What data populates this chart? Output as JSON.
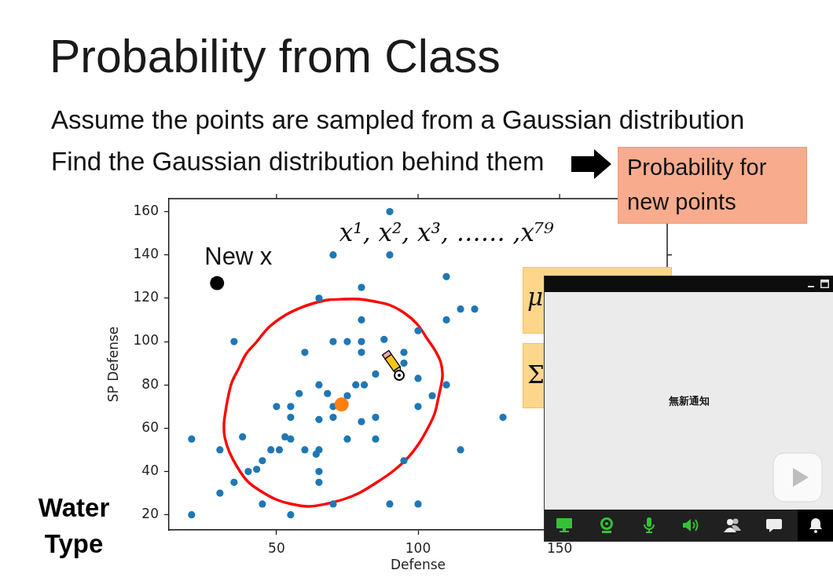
{
  "chart_data": {
    "type": "scatter",
    "title": "Probability from Class",
    "subtitle": "Assume the points are sampled from a Gaussian distribution",
    "xlabel": "Defense",
    "ylabel": "SP Defense",
    "xlim": [
      12,
      188
    ],
    "ylim": [
      13,
      166
    ],
    "xticks": [
      50,
      100,
      150
    ],
    "yticks": [
      20,
      40,
      60,
      80,
      100,
      120,
      140,
      160
    ],
    "grid": false,
    "legend": false,
    "marker": "circle",
    "series": [
      {
        "name": "x¹, x², x³, …… ,x⁷⁹",
        "color": "#1f77b4",
        "x": [
          70,
          65,
          35,
          60,
          70,
          90,
          90,
          110,
          80,
          115,
          120,
          110,
          80,
          100,
          75,
          80,
          88,
          80,
          95,
          95,
          85,
          100,
          65,
          78,
          81,
          110,
          68,
          75,
          105,
          70,
          100,
          65,
          70,
          80,
          85,
          130,
          75,
          85,
          115,
          65,
          64,
          95,
          65,
          65,
          70,
          90,
          100,
          20,
          20,
          30,
          30,
          35,
          38,
          40,
          43,
          45,
          45,
          48,
          51,
          50,
          53,
          55,
          55,
          55,
          55,
          58,
          60
        ],
        "values": [
          140,
          120,
          100,
          95,
          100,
          160,
          140,
          130,
          125,
          115,
          115,
          110,
          110,
          105,
          100,
          100,
          101,
          95,
          95,
          90,
          85,
          83,
          80,
          80,
          80,
          80,
          76,
          75,
          75,
          70,
          70,
          64,
          65,
          63,
          65,
          65,
          55,
          55,
          50,
          50,
          48,
          45,
          40,
          35,
          25,
          25,
          25,
          55,
          20,
          50,
          30,
          35,
          56,
          40,
          41,
          45,
          25,
          50,
          50,
          70,
          56,
          55,
          70,
          65,
          20,
          76,
          50
        ]
      },
      {
        "color": "#ff7f0e",
        "x": [
          73
        ],
        "values": [
          71
        ]
      },
      {
        "name": "New x",
        "color": "#000000",
        "x": [
          29
        ],
        "values": [
          127
        ]
      }
    ],
    "annotations": [
      "Find the Gaussian distribution behind them",
      "Probability for new points",
      "μ",
      "Σ",
      "Water Type",
      "無新通知"
    ]
  }
}
